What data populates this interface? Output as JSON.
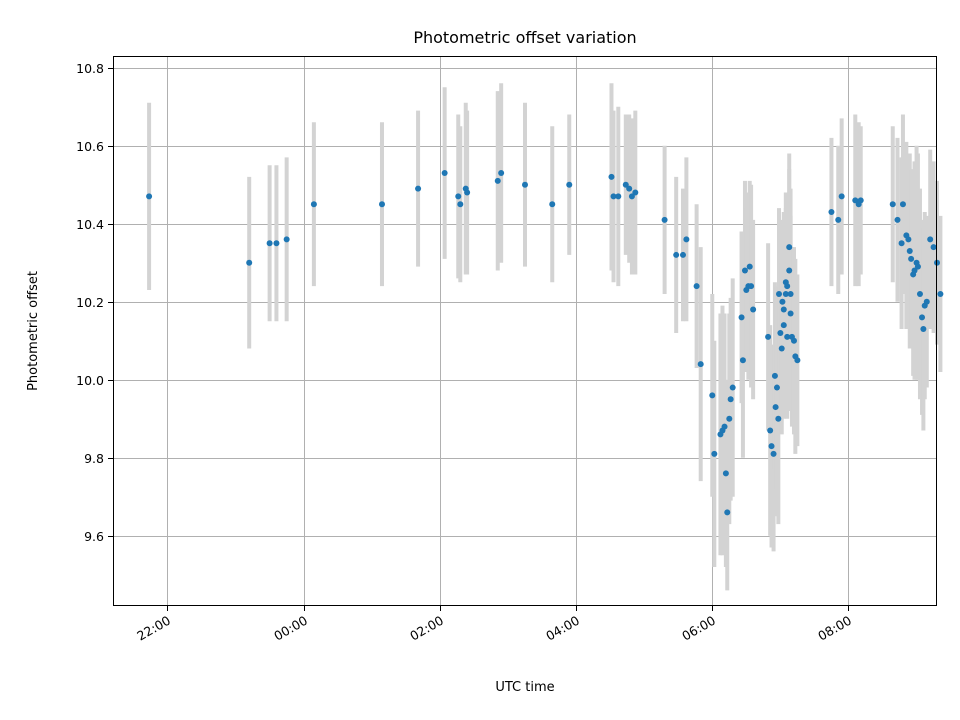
{
  "chart_data": {
    "type": "scatter",
    "title": "Photometric offset variation",
    "xlabel": "UTC time",
    "ylabel": "Photometric offset",
    "x_ticks": [
      "22:00",
      "00:00",
      "02:00",
      "04:00",
      "06:00",
      "08:00"
    ],
    "x_tick_hours": [
      22,
      24,
      26,
      28,
      30,
      32
    ],
    "y_ticks": [
      "9.6",
      "9.8",
      "10.0",
      "10.2",
      "10.4",
      "10.6",
      "10.8"
    ],
    "xlim_hours": [
      21.2,
      33.3
    ],
    "ylim": [
      9.42,
      10.83
    ],
    "grid": true,
    "colors": {
      "points": "#1f77b4",
      "errorbars": "#d3d3d3"
    },
    "series": [
      {
        "x_hours": [
          21.73,
          23.2,
          23.5,
          23.6,
          23.75,
          24.15,
          25.15,
          25.68,
          26.07,
          26.27,
          26.3,
          26.38,
          26.4,
          26.85,
          26.9,
          27.25,
          27.65,
          27.9,
          28.52,
          28.55,
          28.62,
          28.73,
          28.78,
          28.82,
          28.87,
          29.3,
          29.47,
          29.57,
          29.62,
          29.77,
          29.83,
          30.0,
          30.03,
          30.12,
          30.15,
          30.18,
          30.2,
          30.22,
          30.25,
          30.27,
          30.3,
          30.43,
          30.45,
          30.48,
          30.5,
          30.53,
          30.55,
          30.57,
          30.6,
          30.82,
          30.85,
          30.87,
          30.9,
          30.92,
          30.93,
          30.95,
          30.97,
          30.98,
          31.0,
          31.02,
          31.03,
          31.05,
          31.05,
          31.08,
          31.08,
          31.1,
          31.1,
          31.13,
          31.13,
          31.15,
          31.15,
          31.17,
          31.2,
          31.22,
          31.25,
          31.75,
          31.9,
          32.1,
          32.15,
          32.18,
          31.85,
          32.65,
          32.72,
          32.78,
          32.8,
          32.85,
          32.88,
          32.9,
          32.92,
          32.95,
          32.97,
          33.0,
          33.02,
          33.05,
          33.08,
          33.1,
          33.12,
          33.15,
          33.2,
          33.25,
          33.3,
          33.35
        ],
        "y": [
          10.47,
          10.3,
          10.35,
          10.35,
          10.36,
          10.45,
          10.45,
          10.49,
          10.53,
          10.47,
          10.45,
          10.49,
          10.48,
          10.51,
          10.53,
          10.5,
          10.45,
          10.5,
          10.52,
          10.47,
          10.47,
          10.5,
          10.49,
          10.47,
          10.48,
          10.41,
          10.32,
          10.32,
          10.36,
          10.24,
          10.04,
          9.96,
          9.81,
          9.86,
          9.87,
          9.88,
          9.76,
          9.66,
          9.9,
          9.95,
          9.98,
          10.16,
          10.05,
          10.28,
          10.23,
          10.24,
          10.29,
          10.24,
          10.18,
          10.11,
          9.87,
          9.83,
          9.81,
          10.01,
          9.93,
          9.98,
          9.9,
          10.22,
          10.12,
          10.08,
          10.2,
          10.14,
          10.18,
          10.22,
          10.25,
          10.11,
          10.24,
          10.34,
          10.28,
          10.22,
          10.17,
          10.11,
          10.1,
          10.06,
          10.05,
          10.43,
          10.47,
          10.46,
          10.45,
          10.46,
          10.41,
          10.45,
          10.41,
          10.35,
          10.45,
          10.37,
          10.36,
          10.33,
          10.31,
          10.27,
          10.28,
          10.3,
          10.29,
          10.22,
          10.16,
          10.13,
          10.19,
          10.2,
          10.36,
          10.34,
          10.3,
          10.22
        ],
        "yerr": [
          0.24,
          0.22,
          0.2,
          0.2,
          0.21,
          0.21,
          0.21,
          0.2,
          0.22,
          0.21,
          0.2,
          0.22,
          0.21,
          0.23,
          0.23,
          0.21,
          0.2,
          0.18,
          0.24,
          0.22,
          0.23,
          0.18,
          0.19,
          0.2,
          0.21,
          0.19,
          0.2,
          0.17,
          0.21,
          0.21,
          0.3,
          0.26,
          0.29,
          0.31,
          0.32,
          0.29,
          0.24,
          0.2,
          0.27,
          0.26,
          0.28,
          0.22,
          0.25,
          0.23,
          0.21,
          0.24,
          0.22,
          0.26,
          0.23,
          0.24,
          0.27,
          0.26,
          0.25,
          0.24,
          0.28,
          0.26,
          0.27,
          0.22,
          0.2,
          0.22,
          0.21,
          0.24,
          0.25,
          0.22,
          0.23,
          0.21,
          0.24,
          0.24,
          0.26,
          0.27,
          0.25,
          0.23,
          0.24,
          0.25,
          0.22,
          0.19,
          0.2,
          0.22,
          0.21,
          0.19,
          0.19,
          0.2,
          0.21,
          0.22,
          0.23,
          0.24,
          0.21,
          0.25,
          0.23,
          0.26,
          0.28,
          0.3,
          0.29,
          0.27,
          0.25,
          0.26,
          0.24,
          0.22,
          0.23,
          0.22,
          0.21,
          0.2
        ]
      }
    ]
  }
}
